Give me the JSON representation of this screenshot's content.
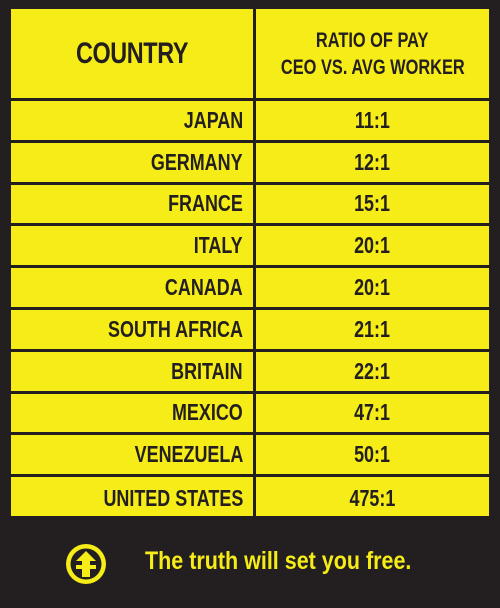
{
  "colors": {
    "background": "#231f20",
    "table": "#f6ec17",
    "text": "#231f20",
    "footer_text": "#f6ec17"
  },
  "chart_data": {
    "type": "table",
    "columns": [
      "COUNTRY",
      "RATIO OF PAY CEO VS. AVG WORKER"
    ],
    "header": {
      "country": "COUNTRY",
      "ratio_line1": "RATIO OF PAY",
      "ratio_line2": "CEO VS. AVG WORKER"
    },
    "rows": [
      {
        "country": "JAPAN",
        "ratio": "11:1"
      },
      {
        "country": "GERMANY",
        "ratio": "12:1"
      },
      {
        "country": "FRANCE",
        "ratio": "15:1"
      },
      {
        "country": "ITALY",
        "ratio": "20:1"
      },
      {
        "country": "CANADA",
        "ratio": "20:1"
      },
      {
        "country": "SOUTH AFRICA",
        "ratio": "21:1"
      },
      {
        "country": "BRITAIN",
        "ratio": "22:1"
      },
      {
        "country": "MEXICO",
        "ratio": "47:1"
      },
      {
        "country": "VENEZUELA",
        "ratio": "50:1"
      },
      {
        "country": "UNITED STATES",
        "ratio": "475:1"
      }
    ]
  },
  "footer": {
    "logo_icon": "shield-arrow-icon",
    "tagline": "The truth will set you free."
  }
}
